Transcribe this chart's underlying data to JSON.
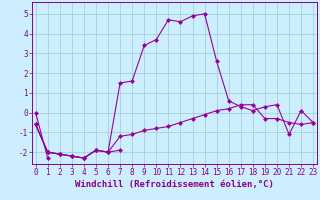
{
  "xlabel": "Windchill (Refroidissement éolien,°C)",
  "background_color": "#cceeff",
  "grid_color": "#99cccc",
  "line_color": "#990099",
  "x_ticks": [
    0,
    1,
    2,
    3,
    4,
    5,
    6,
    7,
    8,
    9,
    10,
    11,
    12,
    13,
    14,
    15,
    16,
    17,
    18,
    19,
    20,
    21,
    22,
    23
  ],
  "y_ticks": [
    -2,
    -1,
    0,
    1,
    2,
    3,
    4,
    5
  ],
  "ylim": [
    -2.6,
    5.6
  ],
  "xlim": [
    -0.3,
    23.3
  ],
  "lines": [
    [
      0,
      -2.3,
      null,
      null,
      null,
      null,
      null,
      null,
      null,
      null,
      null,
      null,
      null,
      null,
      null,
      null,
      null,
      null,
      null,
      null,
      null,
      null,
      null,
      null
    ],
    [
      -0.6,
      -2.0,
      -2.1,
      -2.2,
      -2.3,
      -1.9,
      -2.0,
      -1.9,
      null,
      null,
      null,
      null,
      null,
      null,
      null,
      null,
      null,
      null,
      null,
      null,
      null,
      null,
      null,
      null
    ],
    [
      -0.6,
      -2.0,
      -2.1,
      -2.2,
      -2.3,
      -1.9,
      -2.0,
      -1.2,
      -1.1,
      -0.9,
      -0.8,
      -0.7,
      -0.5,
      -0.3,
      -0.1,
      0.1,
      0.2,
      0.4,
      0.4,
      -0.3,
      -0.3,
      -0.5,
      -0.6,
      -0.5
    ],
    [
      -0.6,
      -2.0,
      -2.1,
      -2.2,
      -2.3,
      -1.9,
      -2.0,
      1.5,
      1.6,
      3.4,
      3.7,
      4.7,
      4.6,
      4.9,
      5.0,
      2.6,
      0.6,
      0.3,
      0.1,
      0.3,
      0.4,
      -1.1,
      0.1,
      -0.5
    ]
  ],
  "marker": "D",
  "marker_size": 2,
  "line_width": 0.8,
  "tick_fontsize": 5.5,
  "label_fontsize": 6.5,
  "tick_color": "#880088",
  "spine_color": "#880088"
}
